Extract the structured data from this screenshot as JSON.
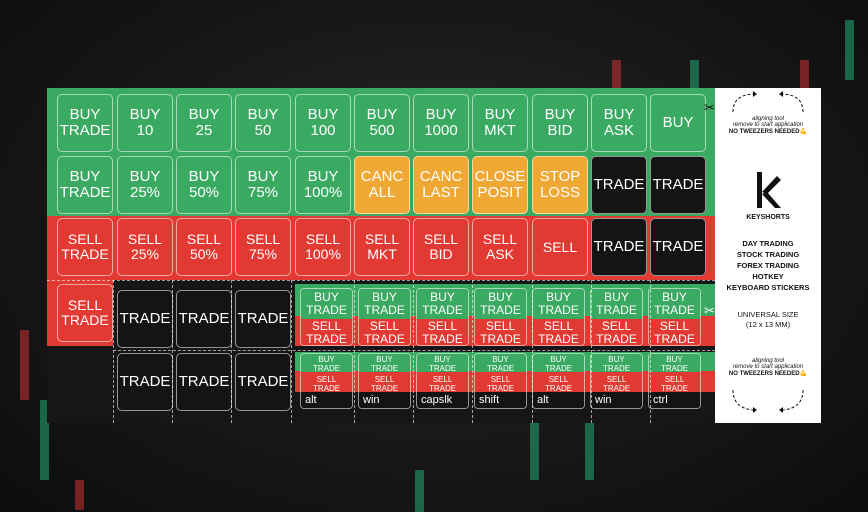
{
  "row1": [
    "BUY\nTRADE",
    "BUY\n10",
    "BUY\n25",
    "BUY\n50",
    "BUY\n100",
    "BUY\n500",
    "BUY\n1000",
    "BUY\nMKT",
    "BUY\nBID",
    "BUY\nASK",
    "BUY"
  ],
  "row2": [
    "BUY\nTRADE",
    "BUY\n25%",
    "BUY\n50%",
    "BUY\n75%",
    "BUY\n100%",
    "CANC\nALL",
    "CANC\nLAST",
    "CLOSE\nPOSIT",
    "STOP\nLOSS",
    "TRADE",
    "TRADE"
  ],
  "row3": [
    "SELL\nTRADE",
    "SELL\n25%",
    "SELL\n50%",
    "SELL\n75%",
    "SELL\n100%",
    "SELL\nMKT",
    "SELL\nBID",
    "SELL\nASK",
    "SELL",
    "TRADE",
    "TRADE"
  ],
  "row4_left": [
    "SELL\nTRADE",
    "TRADE",
    "TRADE",
    "TRADE"
  ],
  "row5_left": [
    "TRADE",
    "TRADE",
    "TRADE"
  ],
  "split_large": {
    "top": "BUY\nTRADE",
    "bottom": "SELL\nTRADE",
    "count": 7
  },
  "split_small": {
    "top": "BUY\nTRADE",
    "bottom": "SELL\nTRADE",
    "labels": [
      "alt",
      "win",
      "capslk",
      "shift",
      "alt",
      "win",
      "ctrl"
    ]
  },
  "panel": {
    "tool_line1": "aligning tool",
    "tool_line2": "remove to start application",
    "tool_line3": "NO TWEEZERS NEEDED💪",
    "brand": "KEYSHORTS",
    "desc": [
      "DAY TRADING",
      "STOCK TRADING",
      "FOREX TRADING",
      "HOTKEY",
      "KEYBOARD STICKERS"
    ],
    "size1": "UNIVERSAL SIZE",
    "size2": "(12 x 13 MM)"
  },
  "colors": {
    "green": "#3aaa62",
    "red": "#e23a33",
    "amber": "#f0a834",
    "black": "#141414"
  }
}
